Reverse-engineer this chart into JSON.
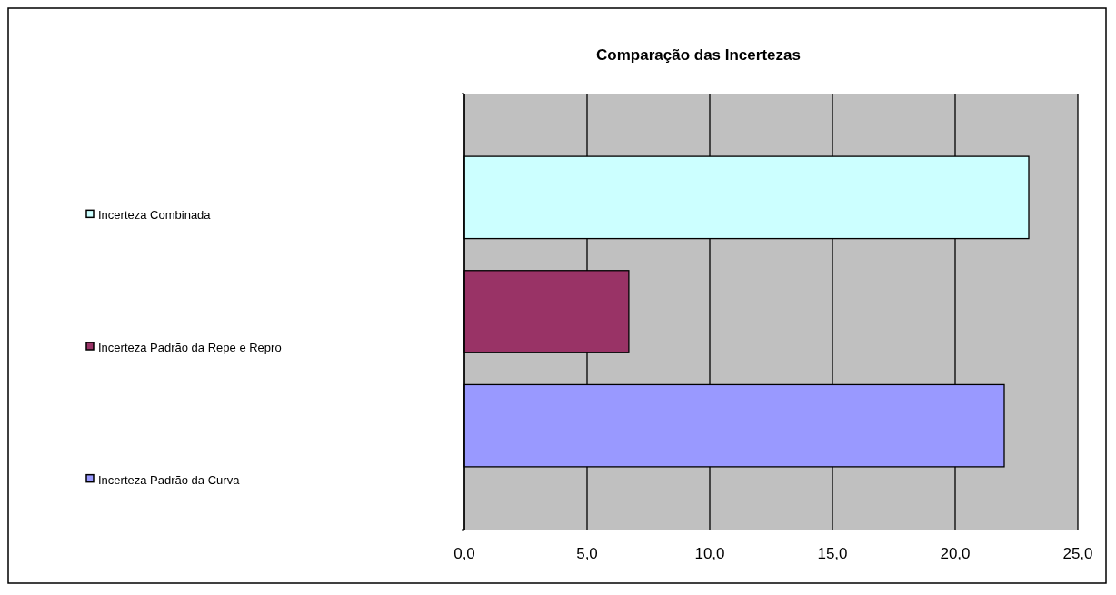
{
  "chart_data": {
    "type": "bar",
    "orientation": "horizontal",
    "title": "Comparação das Incertezas",
    "categories": [
      null
    ],
    "series": [
      {
        "name": "Incerteza Combinada",
        "color": "#ccffff",
        "values": [
          23.0
        ]
      },
      {
        "name": "Incerteza Padrão da Repe e Repro",
        "color": "#993366",
        "values": [
          6.7
        ]
      },
      {
        "name": "Incerteza Padrão da Curva",
        "color": "#9999ff",
        "values": [
          22.0
        ]
      }
    ],
    "xlim": [
      0,
      25
    ],
    "xticks": [
      {
        "value": 0,
        "label": "0,0"
      },
      {
        "value": 5,
        "label": "5,0"
      },
      {
        "value": 10,
        "label": "10,0"
      },
      {
        "value": 15,
        "label": "15,0"
      },
      {
        "value": 20,
        "label": "20,0"
      },
      {
        "value": 25,
        "label": "25,0"
      }
    ],
    "grid": "x",
    "legend": "left"
  }
}
